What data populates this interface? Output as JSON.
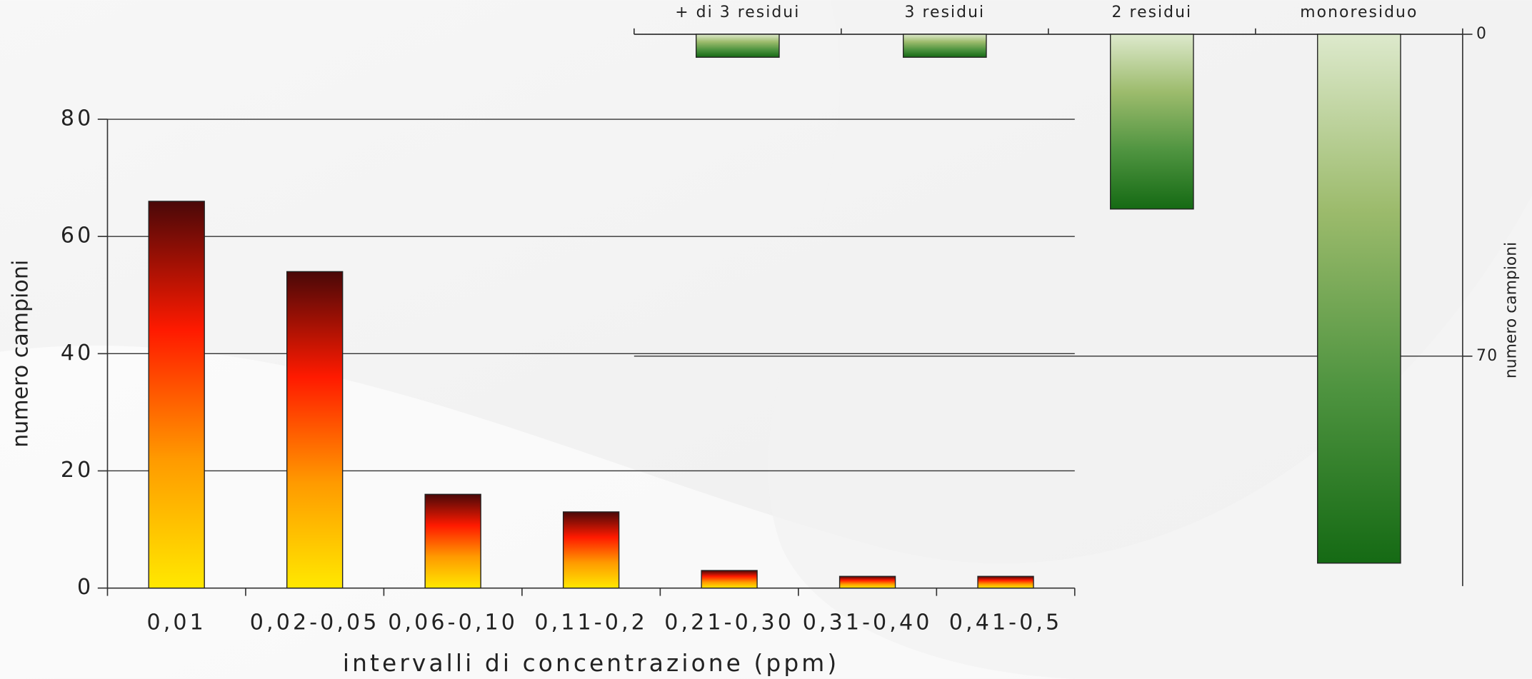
{
  "chart_data": [
    {
      "type": "bar",
      "ylabel": "numero campioni",
      "xlabel": "intervalli di concentrazione (ppm)",
      "categories": [
        "0,01",
        "0,02-0,05",
        "0,06-0,10",
        "0,11-0,2",
        "0,21-0,30",
        "0,31-0,40",
        "0,41-0,5"
      ],
      "values": [
        66,
        54,
        16,
        13,
        3,
        2,
        2
      ],
      "ylim": [
        0,
        80
      ],
      "yticks": [
        0,
        20,
        40,
        60,
        80
      ],
      "grid": true,
      "colors": [
        "#ffe800",
        "#ff9a00",
        "#ff1a00",
        "#4a0808"
      ]
    },
    {
      "type": "bar",
      "ylabel": "numero campioni",
      "inverted": true,
      "axis_side": "right",
      "categories": [
        "+ di 3 residui",
        "3 residui",
        "2 residui",
        "monoresiduo"
      ],
      "values": [
        5,
        5,
        38,
        115
      ],
      "ylim": [
        0,
        120
      ],
      "yticks": [
        0,
        70
      ],
      "grid": true,
      "colors": [
        "#dde9cc",
        "#9cbb6c",
        "#4f9440",
        "#156a14"
      ]
    }
  ]
}
